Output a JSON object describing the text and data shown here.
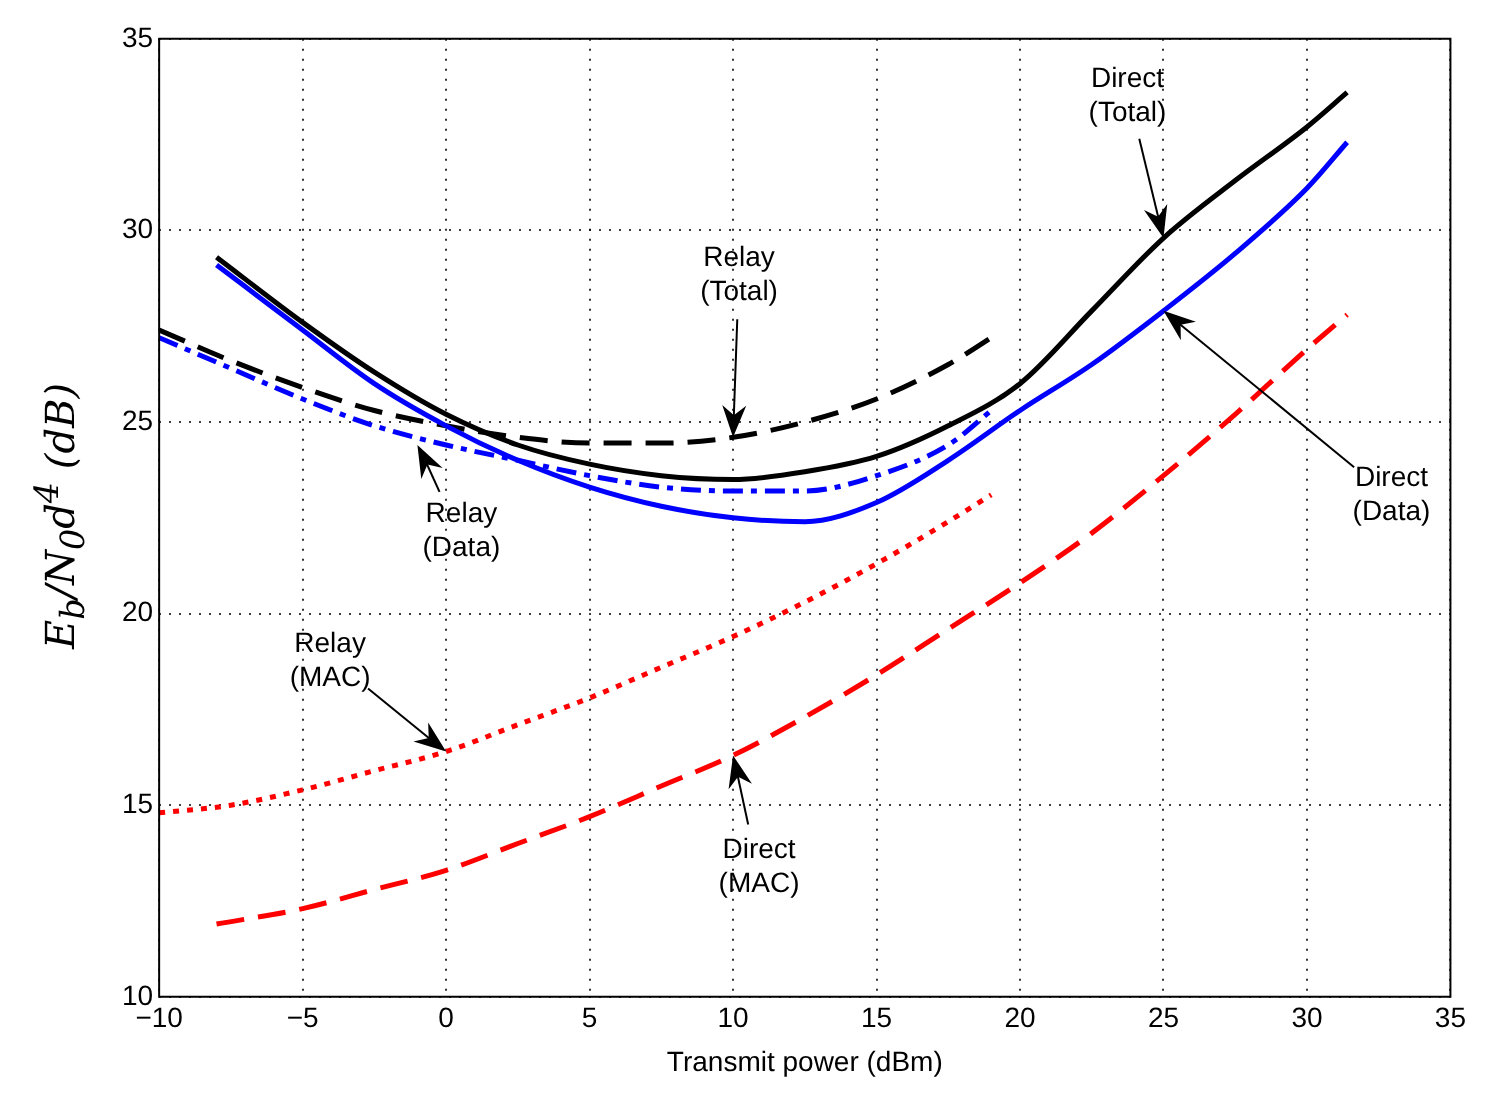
{
  "chart_data": {
    "type": "line",
    "xlabel": "Transmit power (dBm)",
    "ylabel": "E$_{b}$/N$_{0}$d$^{4}$ (dB)",
    "xlim": [
      -10,
      35
    ],
    "xticks": [
      {
        "value": -10,
        "label": "−10"
      },
      {
        "value": -5,
        "label": "−5"
      },
      0,
      5,
      10,
      15,
      20,
      25,
      30,
      35
    ],
    "ylim": [
      10,
      35
    ],
    "yticks": [
      10,
      15,
      20,
      25,
      30,
      35
    ],
    "grid": true,
    "legend": false,
    "marker": "none",
    "series": [
      {
        "color": "#000000",
        "line_style": "solid",
        "x": [
          -8,
          -5,
          -2.5,
          0,
          2.5,
          5,
          7.5,
          10,
          12.5,
          15,
          17.5,
          20,
          22.5,
          25,
          27.5,
          30,
          31.4
        ],
        "values": [
          29.3,
          27.6,
          26.3,
          25.2,
          24.4,
          23.9,
          23.6,
          23.5,
          23.7,
          24.1,
          24.9,
          26.0,
          27.9,
          29.8,
          31.3,
          32.7,
          33.6
        ]
      },
      {
        "color": "#0000ff",
        "line_style": "solid",
        "x": [
          -8,
          -5,
          -2.5,
          0,
          2.5,
          5,
          7.5,
          10,
          12.5,
          15,
          17.5,
          20,
          22.5,
          25,
          27.5,
          30,
          31.4
        ],
        "values": [
          29.1,
          27.4,
          26.0,
          24.9,
          24.0,
          23.3,
          22.8,
          22.5,
          22.4,
          22.9,
          24.0,
          25.3,
          26.5,
          27.9,
          29.4,
          31.1,
          32.3
        ]
      },
      {
        "color": "#000000",
        "line_style": "dashed",
        "x": [
          -10,
          -7.5,
          -5,
          -2.5,
          0,
          2.5,
          5,
          7.5,
          10,
          12.5,
          15,
          17.5,
          19
        ],
        "values": [
          27.4,
          26.6,
          25.9,
          25.3,
          24.9,
          24.6,
          24.45,
          24.45,
          24.6,
          25.0,
          25.6,
          26.5,
          27.2
        ]
      },
      {
        "color": "#0000ff",
        "line_style": "dashdot",
        "x": [
          -10,
          -7.5,
          -5,
          -2.5,
          0,
          2.5,
          5,
          7.5,
          10,
          12.5,
          15,
          17.5,
          19
        ],
        "values": [
          27.2,
          26.4,
          25.6,
          24.9,
          24.4,
          24.0,
          23.6,
          23.3,
          23.2,
          23.2,
          23.6,
          24.4,
          25.3
        ]
      },
      {
        "color": "#ff0000",
        "line_style": "dotted",
        "x": [
          -10,
          -7.5,
          -5,
          -2.5,
          0,
          2.5,
          5,
          7.5,
          10,
          12.5,
          15,
          17.5,
          19
        ],
        "values": [
          14.8,
          15.0,
          15.4,
          15.9,
          16.4,
          17.1,
          17.8,
          18.6,
          19.4,
          20.3,
          21.3,
          22.4,
          23.1
        ]
      },
      {
        "color": "#ff0000",
        "line_style": "dashed",
        "x": [
          -8,
          -5,
          -2.5,
          0,
          2.5,
          5,
          7.5,
          10,
          12.5,
          15,
          17.5,
          20,
          22.5,
          25,
          27.5,
          30,
          31.4
        ],
        "values": [
          11.9,
          12.3,
          12.8,
          13.3,
          14.0,
          14.7,
          15.5,
          16.3,
          17.3,
          18.4,
          19.6,
          20.8,
          22.1,
          23.6,
          25.2,
          26.9,
          27.8
        ]
      }
    ],
    "annotations": [
      {
        "text": "Direct\n(Total)",
        "x": 25,
        "y": 29.8
      },
      {
        "text": "Relay\n(Total)",
        "x": 10,
        "y": 24.6
      },
      {
        "text": "Relay\n(Data)",
        "x": -1.0,
        "y": 24.4
      },
      {
        "text": "Direct\n(Data)",
        "x": 25,
        "y": 27.9
      },
      {
        "text": "Relay\n(MAC)",
        "x": 0,
        "y": 16.4
      },
      {
        "text": "Direct\n(MAC)",
        "x": 10,
        "y": 16.3
      }
    ]
  }
}
